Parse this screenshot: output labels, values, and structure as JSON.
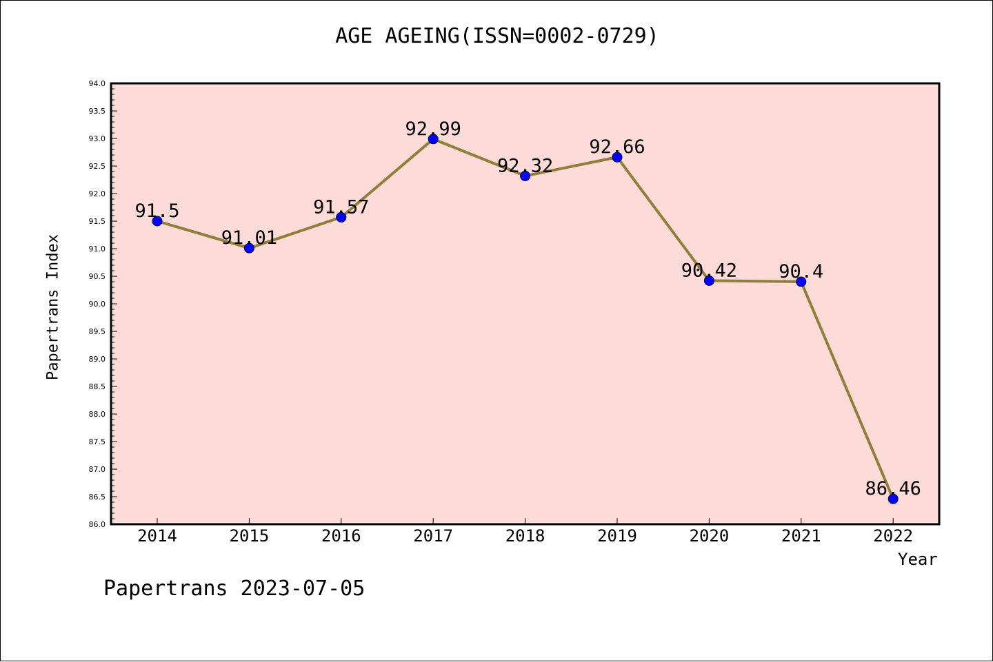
{
  "chart_data": {
    "type": "line",
    "title": "AGE AGEING(ISSN=0002-0729)",
    "xlabel": "Year",
    "ylabel": "Papertrans Index",
    "categories": [
      "2014",
      "2015",
      "2016",
      "2017",
      "2018",
      "2019",
      "2020",
      "2021",
      "2022"
    ],
    "series": [
      {
        "values": [
          91.5,
          91.01,
          91.57,
          92.99,
          92.32,
          92.66,
          90.42,
          90.4,
          86.46
        ],
        "labels": [
          "91.5",
          "91.01",
          "91.57",
          "92.99",
          "92.32",
          "92.66",
          "90.42",
          "90.4",
          "86.46"
        ]
      }
    ],
    "ylim": [
      86.0,
      94.0
    ],
    "yticks": [
      "86.0",
      "86.5",
      "87.0",
      "87.5",
      "88.0",
      "88.5",
      "89.0",
      "89.5",
      "90.0",
      "90.5",
      "91.0",
      "91.5",
      "92.0",
      "92.5",
      "93.0",
      "93.5",
      "94.0"
    ],
    "grid": false,
    "colors": {
      "plot_background": "#fddbd8",
      "line": "#8f7f3a",
      "marker": "#0000ff"
    }
  },
  "footer": "Papertrans 2023-07-05"
}
